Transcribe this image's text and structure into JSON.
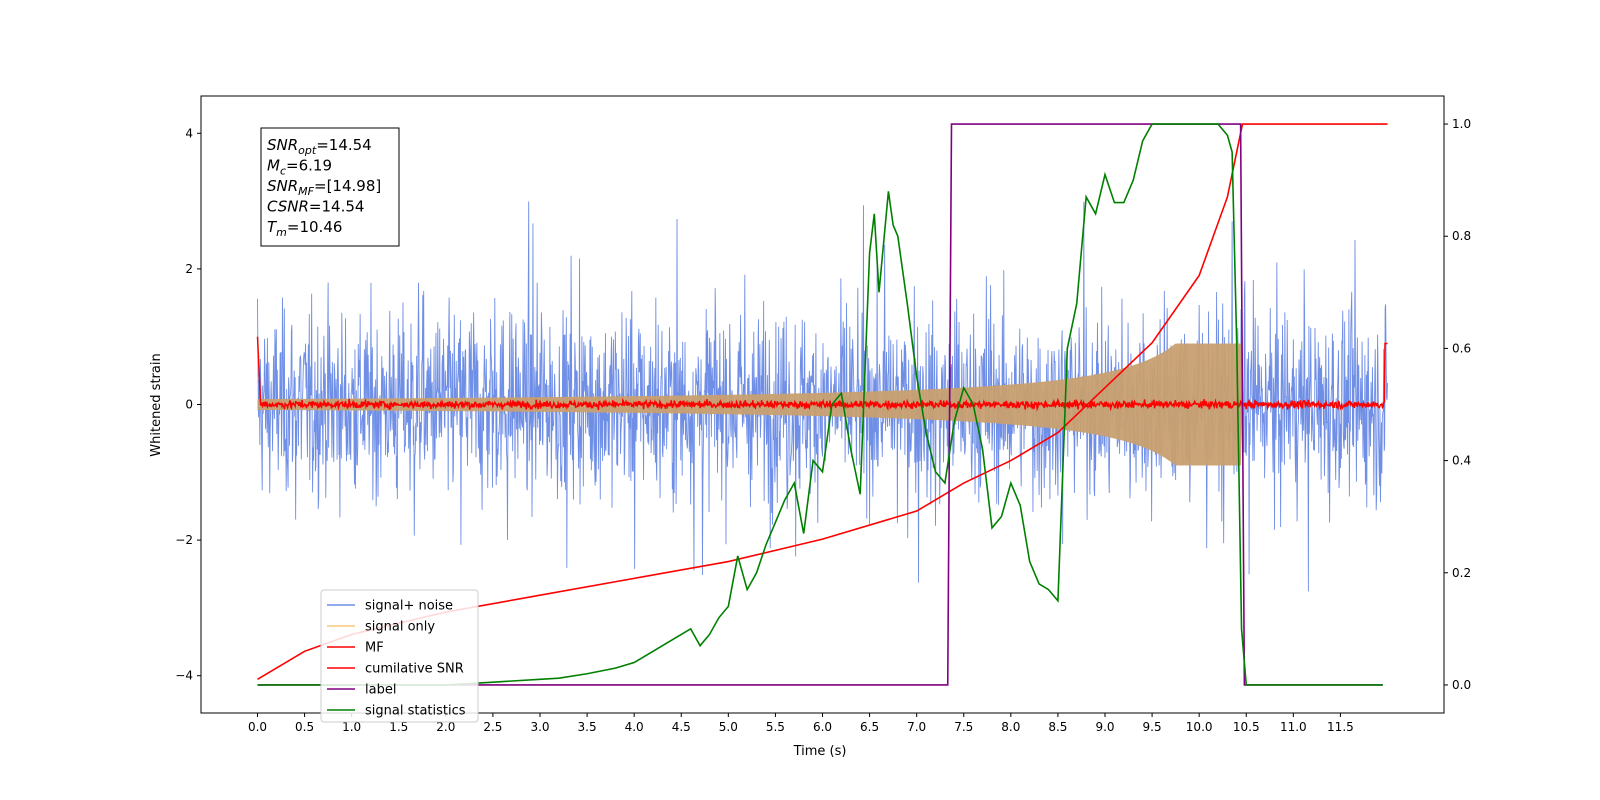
{
  "chart_data": {
    "type": "line",
    "title": "",
    "xlabel": "Time (s)",
    "ylabel": "Whitened strain",
    "y2label": "",
    "xlim": [
      -0.6,
      12.6
    ],
    "ylim": [
      -4.55,
      4.55
    ],
    "y2lim": [
      -0.05,
      1.05
    ],
    "x_ticks": [
      "0.0",
      "0.5",
      "1.0",
      "1.5",
      "2.0",
      "2.5",
      "3.0",
      "3.5",
      "4.0",
      "4.5",
      "5.0",
      "5.5",
      "6.0",
      "6.5",
      "7.0",
      "7.5",
      "8.0",
      "8.5",
      "9.0",
      "9.5",
      "10.0",
      "10.5",
      "11.0",
      "11.5"
    ],
    "y_ticks": [
      "−4",
      "−2",
      "0",
      "2",
      "4"
    ],
    "y2_ticks": [
      "0.0",
      "0.2",
      "0.4",
      "0.6",
      "0.8",
      "1.0"
    ],
    "grid": false,
    "legend_position": "bottom-left",
    "annotation": [
      {
        "name": "SNR",
        "sub": "opt",
        "value": "=14.54"
      },
      {
        "name": "M",
        "sub": "c",
        "value": "=6.19"
      },
      {
        "name": "SNR",
        "sub": "MF",
        "value": "=[14.98]"
      },
      {
        "name": "CSNR",
        "sub": "",
        "value": "=14.54"
      },
      {
        "name": "T",
        "sub": "m",
        "value": "=10.46"
      }
    ],
    "series": [
      {
        "name": "signal+ noise",
        "color": "#6f8ee6",
        "axis": "left",
        "noise_amplitude": 1.15,
        "duration": 12.0
      },
      {
        "name": "signal only",
        "color": "#f5c87a",
        "fill": "#c8a070",
        "axis": "left",
        "chirp_envelope_max": 0.9,
        "merger_time": 10.46
      },
      {
        "name": "MF",
        "color": "#ff0000",
        "axis": "left",
        "noise_amplitude": 0.05
      },
      {
        "name": "cumilative SNR",
        "color": "#ff0000",
        "axis": "right",
        "x": [
          0.0,
          0.5,
          1.0,
          2.0,
          3.0,
          4.0,
          5.0,
          6.0,
          7.0,
          7.5,
          8.0,
          8.5,
          9.0,
          9.5,
          10.0,
          10.3,
          10.46,
          12.0
        ],
        "values": [
          0.01,
          0.06,
          0.09,
          0.13,
          0.16,
          0.19,
          0.22,
          0.26,
          0.31,
          0.36,
          0.4,
          0.45,
          0.53,
          0.61,
          0.73,
          0.87,
          1.0,
          1.0
        ]
      },
      {
        "name": "label",
        "color": "#800080",
        "axis": "right",
        "x": [
          0.0,
          7.33,
          7.37,
          10.44,
          10.48,
          11.95
        ],
        "values": [
          0.0,
          0.0,
          1.0,
          1.0,
          0.0,
          0.0
        ]
      },
      {
        "name": "signal statistics",
        "color": "#008000",
        "axis": "right",
        "x": [
          0.0,
          0.5,
          1.0,
          1.5,
          2.0,
          2.5,
          3.0,
          3.2,
          3.5,
          3.8,
          4.0,
          4.2,
          4.4,
          4.6,
          4.7,
          4.8,
          4.9,
          5.0,
          5.1,
          5.2,
          5.3,
          5.4,
          5.5,
          5.6,
          5.7,
          5.8,
          5.9,
          6.0,
          6.1,
          6.2,
          6.3,
          6.4,
          6.5,
          6.55,
          6.6,
          6.7,
          6.75,
          6.8,
          6.9,
          7.0,
          7.1,
          7.2,
          7.3,
          7.4,
          7.5,
          7.6,
          7.7,
          7.8,
          7.9,
          8.0,
          8.1,
          8.2,
          8.3,
          8.4,
          8.5,
          8.6,
          8.7,
          8.8,
          8.9,
          9.0,
          9.1,
          9.2,
          9.3,
          9.4,
          9.5,
          9.6,
          9.7,
          9.8,
          9.9,
          10.0,
          10.1,
          10.2,
          10.3,
          10.35,
          10.4,
          10.45,
          10.5,
          11.0,
          11.5,
          11.95
        ],
        "values": [
          0.0,
          0.0,
          0.0,
          0.0,
          0.0,
          0.005,
          0.01,
          0.012,
          0.02,
          0.03,
          0.04,
          0.06,
          0.08,
          0.1,
          0.07,
          0.09,
          0.12,
          0.14,
          0.23,
          0.17,
          0.2,
          0.25,
          0.29,
          0.33,
          0.36,
          0.27,
          0.4,
          0.38,
          0.5,
          0.52,
          0.42,
          0.34,
          0.77,
          0.84,
          0.7,
          0.88,
          0.82,
          0.8,
          0.68,
          0.55,
          0.45,
          0.38,
          0.36,
          0.47,
          0.53,
          0.5,
          0.42,
          0.28,
          0.3,
          0.36,
          0.32,
          0.22,
          0.18,
          0.17,
          0.15,
          0.6,
          0.68,
          0.87,
          0.84,
          0.91,
          0.86,
          0.86,
          0.9,
          0.97,
          1.0,
          1.0,
          1.0,
          1.0,
          1.0,
          1.0,
          1.0,
          1.0,
          0.98,
          0.95,
          0.6,
          0.1,
          0.0,
          0.0,
          0.0,
          0.0
        ]
      }
    ]
  }
}
